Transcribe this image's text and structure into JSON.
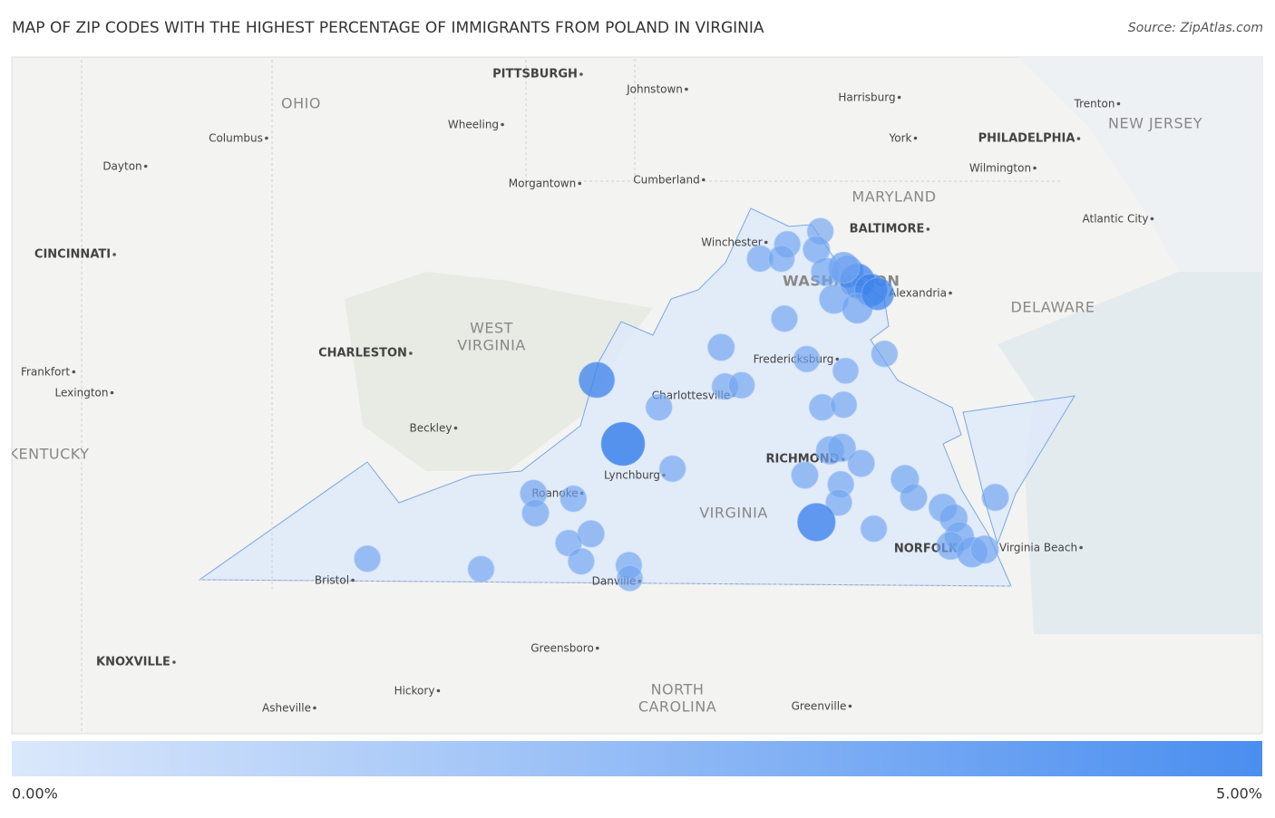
{
  "title": "MAP OF ZIP CODES WITH THE HIGHEST PERCENTAGE OF IMMIGRANTS FROM POLAND IN VIRGINIA",
  "source": "Source: ZipAtlas.com",
  "places": [
    "PITTSBURGH",
    "Johnstown",
    "Harrisburg",
    "Trenton",
    "OHIO",
    "NEW JERSEY",
    "Wheeling",
    "Columbus",
    "York",
    "PHILADELPHIA",
    "Dayton",
    "Wilmington",
    "Morgantown",
    "Cumberland",
    "MARYLAND",
    "BALTIMORE",
    "Atlantic City",
    "Winchester",
    "CINCINNATI",
    "WASHINGTON",
    "Alexandria",
    "DELAWARE",
    "WEST",
    "VIRGINIA",
    "CHARLESTON",
    "Frankfort",
    "Fredericksburg",
    "Lexington",
    "Charlottesville",
    "Beckley",
    "KENTUCKY",
    "RICHMOND",
    "Lynchburg",
    "Roanoke",
    "VIRGINIA",
    "NORFOLK",
    "Virginia Beach",
    "Bristol",
    "Danville",
    "Greensboro",
    "KNOXVILLE",
    "NORTH",
    "CAROLINA",
    "Hickory",
    "Greenville",
    "Asheville"
  ],
  "legend_ticks": [
    {
      "value": 0,
      "label": "0.00%"
    },
    {
      "value": 5,
      "label": "5.00%"
    }
  ],
  "points": [
    {
      "lon": -77.37,
      "lat": 39.28,
      "value": 1.5
    },
    {
      "lon": -77.71,
      "lat": 39.18,
      "value": 1.5
    },
    {
      "lon": -77.99,
      "lat": 39.07,
      "value": 1.5
    },
    {
      "lon": -77.77,
      "lat": 39.07,
      "value": 1.5
    },
    {
      "lon": -77.41,
      "lat": 39.14,
      "value": 1.6
    },
    {
      "lon": -77.32,
      "lat": 38.97,
      "value": 1.8
    },
    {
      "lon": -77.09,
      "lat": 38.97,
      "value": 2.5
    },
    {
      "lon": -76.99,
      "lat": 38.9,
      "value": 3.0
    },
    {
      "lon": -76.85,
      "lat": 38.83,
      "value": 2.6
    },
    {
      "lon": -77.23,
      "lat": 38.76,
      "value": 2.0
    },
    {
      "lon": -76.99,
      "lat": 38.69,
      "value": 2.2
    },
    {
      "lon": -76.78,
      "lat": 38.8,
      "value": 2.6
    },
    {
      "lon": -77.13,
      "lat": 39.0,
      "value": 2.4
    },
    {
      "lon": -77.74,
      "lat": 38.61,
      "value": 1.5
    },
    {
      "lon": -78.39,
      "lat": 38.39,
      "value": 1.6
    },
    {
      "lon": -77.51,
      "lat": 38.3,
      "value": 1.5
    },
    {
      "lon": -77.11,
      "lat": 38.21,
      "value": 1.4
    },
    {
      "lon": -76.71,
      "lat": 38.34,
      "value": 1.5
    },
    {
      "lon": -78.35,
      "lat": 38.09,
      "value": 1.5
    },
    {
      "lon": -78.18,
      "lat": 38.1,
      "value": 1.5
    },
    {
      "lon": -79.03,
      "lat": 37.93,
      "value": 1.5
    },
    {
      "lon": -77.35,
      "lat": 37.93,
      "value": 1.5
    },
    {
      "lon": -77.13,
      "lat": 37.95,
      "value": 1.5
    },
    {
      "lon": -79.67,
      "lat": 38.14,
      "value": 3.2
    },
    {
      "lon": -79.4,
      "lat": 37.65,
      "value": 4.6
    },
    {
      "lon": -78.89,
      "lat": 37.46,
      "value": 1.5
    },
    {
      "lon": -77.27,
      "lat": 37.6,
      "value": 1.8
    },
    {
      "lon": -77.15,
      "lat": 37.62,
      "value": 1.8
    },
    {
      "lon": -77.53,
      "lat": 37.41,
      "value": 1.6
    },
    {
      "lon": -76.95,
      "lat": 37.5,
      "value": 1.6
    },
    {
      "lon": -77.16,
      "lat": 37.34,
      "value": 1.5
    },
    {
      "lon": -77.18,
      "lat": 37.2,
      "value": 1.5
    },
    {
      "lon": -77.41,
      "lat": 37.05,
      "value": 3.6
    },
    {
      "lon": -76.5,
      "lat": 37.38,
      "value": 1.8
    },
    {
      "lon": -76.41,
      "lat": 37.24,
      "value": 1.6
    },
    {
      "lon": -76.11,
      "lat": 37.16,
      "value": 1.8
    },
    {
      "lon": -76.0,
      "lat": 37.08,
      "value": 1.8
    },
    {
      "lon": -76.82,
      "lat": 37.0,
      "value": 1.5
    },
    {
      "lon": -75.57,
      "lat": 37.24,
      "value": 1.6
    },
    {
      "lon": -75.94,
      "lat": 36.94,
      "value": 2.0
    },
    {
      "lon": -76.03,
      "lat": 36.87,
      "value": 1.8
    },
    {
      "lon": -75.81,
      "lat": 36.82,
      "value": 2.2
    },
    {
      "lon": -75.68,
      "lat": 36.84,
      "value": 1.8
    },
    {
      "lon": -80.32,
      "lat": 37.27,
      "value": 1.6
    },
    {
      "lon": -79.91,
      "lat": 37.23,
      "value": 1.5
    },
    {
      "lon": -80.3,
      "lat": 37.12,
      "value": 1.6
    },
    {
      "lon": -79.73,
      "lat": 36.96,
      "value": 1.6
    },
    {
      "lon": -79.96,
      "lat": 36.89,
      "value": 1.5
    },
    {
      "lon": -79.83,
      "lat": 36.75,
      "value": 1.5
    },
    {
      "lon": -79.34,
      "lat": 36.72,
      "value": 1.5
    },
    {
      "lon": -79.33,
      "lat": 36.62,
      "value": 1.4
    },
    {
      "lon": -80.86,
      "lat": 36.69,
      "value": 1.5
    },
    {
      "lon": -82.03,
      "lat": 36.77,
      "value": 1.5
    }
  ]
}
